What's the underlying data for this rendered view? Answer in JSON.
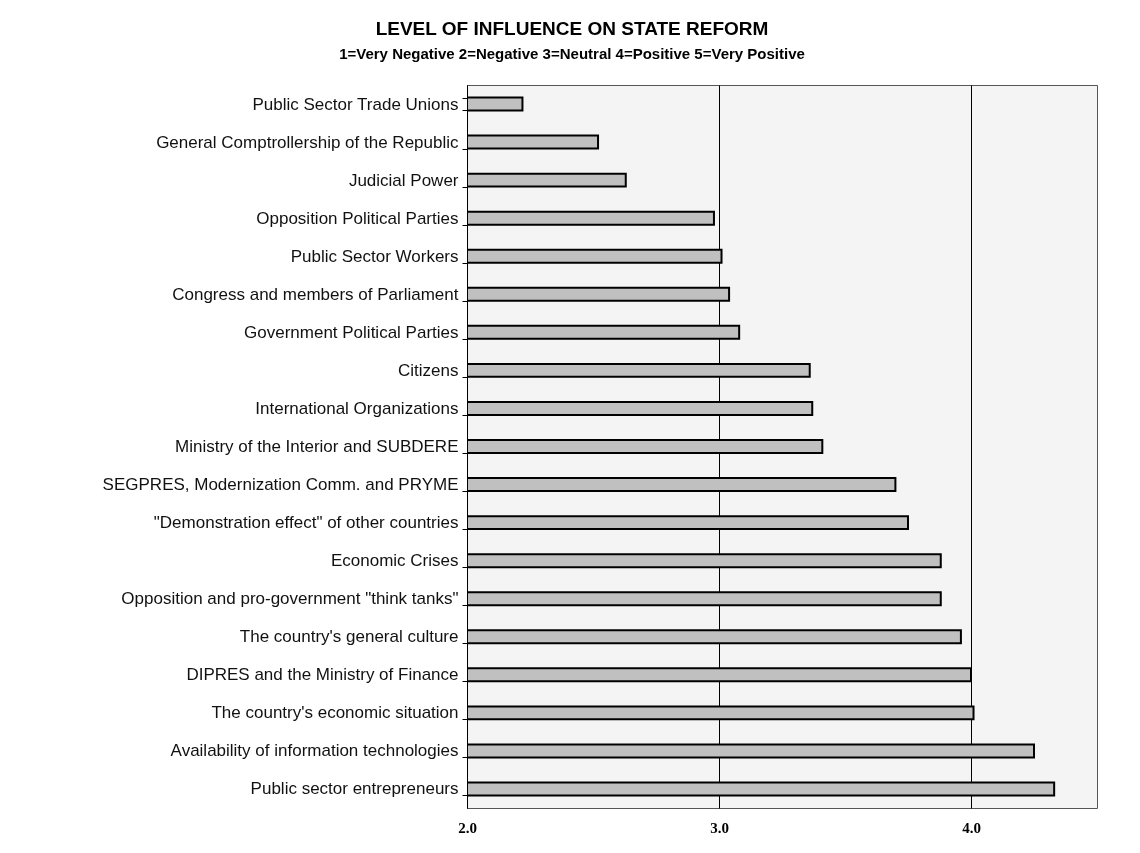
{
  "chart_data": {
    "type": "bar",
    "orientation": "horizontal",
    "title": "LEVEL OF INFLUENCE ON STATE REFORM",
    "subtitle": "1=Very Negative   2=Negative   3=Neutral   4=Positive   5=Very Positive",
    "categories": [
      "Public Sector Trade Unions",
      "General Comptrollership of the Republic",
      "Judicial Power",
      "Opposition Political Parties",
      "Public Sector Workers",
      "Congress and members of Parliament",
      "Government Political Parties",
      "Citizens",
      "International Organizations",
      "Ministry of the Interior and SUBDERE",
      "SEGPRES, Modernization Comm. and PRYME",
      "\"Demonstration effect\" of other countries",
      "Economic Crises",
      "Opposition and pro-government \"think tanks\"",
      "The country's general culture",
      "DIPRES and the Ministry of Finance",
      "The country's economic situation",
      "Availability of information technologies",
      "Public sector entrepreneurs"
    ],
    "values": [
      2.22,
      2.52,
      2.63,
      2.98,
      3.01,
      3.04,
      3.08,
      3.36,
      3.37,
      3.41,
      3.7,
      3.75,
      3.88,
      3.88,
      3.96,
      4.0,
      4.01,
      4.25,
      4.33
    ],
    "color": "#c0c0c0",
    "xlim": [
      2,
      4.5
    ],
    "xticks": [
      {
        "value": 2,
        "label": "2.0"
      },
      {
        "value": 3,
        "label": "3.0"
      },
      {
        "value": 4,
        "label": "4.0"
      }
    ],
    "grid": "x"
  }
}
